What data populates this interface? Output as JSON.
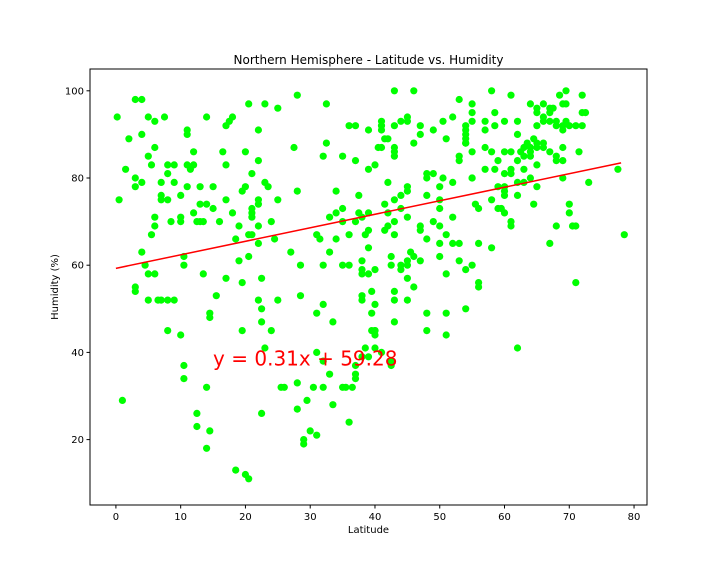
{
  "chart_data": {
    "type": "scatter",
    "title": "Northern Hemisphere - Latitude vs. Humidity",
    "xlabel": "Latitude",
    "ylabel": "Humidity (%)",
    "xlim": [
      -4,
      82
    ],
    "ylim": [
      5,
      105
    ],
    "xticks": [
      0,
      10,
      20,
      30,
      40,
      50,
      60,
      70,
      80
    ],
    "yticks": [
      20,
      40,
      60,
      80,
      100
    ],
    "grid": false,
    "point_color": "#00ff00",
    "regression": {
      "slope": 0.31,
      "intercept": 59.28,
      "x_range": [
        0,
        78
      ],
      "color": "#ff0000",
      "equation": "y = 0.31x + 59.28",
      "equation_anchor": [
        15,
        37
      ]
    },
    "points": [
      [
        0.2,
        94
      ],
      [
        0.5,
        75
      ],
      [
        1,
        29
      ],
      [
        1.5,
        82
      ],
      [
        2,
        89
      ],
      [
        3,
        98
      ],
      [
        3,
        80
      ],
      [
        3,
        55
      ],
      [
        3,
        54
      ],
      [
        3,
        78
      ],
      [
        4,
        90
      ],
      [
        4,
        98
      ],
      [
        4,
        63
      ],
      [
        4,
        79
      ],
      [
        4.5,
        60
      ],
      [
        5,
        94
      ],
      [
        5,
        52
      ],
      [
        5,
        85
      ],
      [
        5,
        58
      ],
      [
        5.5,
        67
      ],
      [
        5.5,
        83
      ],
      [
        6,
        93
      ],
      [
        6,
        69
      ],
      [
        6,
        71
      ],
      [
        6,
        58
      ],
      [
        6,
        87
      ],
      [
        6.5,
        52
      ],
      [
        7,
        76
      ],
      [
        7,
        75
      ],
      [
        7,
        52
      ],
      [
        7,
        79
      ],
      [
        7.5,
        94
      ],
      [
        8,
        81
      ],
      [
        8,
        83
      ],
      [
        8,
        52
      ],
      [
        8,
        45
      ],
      [
        8,
        75
      ],
      [
        8.5,
        70
      ],
      [
        9,
        83
      ],
      [
        9,
        79
      ],
      [
        9,
        52
      ],
      [
        10,
        76
      ],
      [
        10,
        71
      ],
      [
        10,
        44
      ],
      [
        10,
        70
      ],
      [
        10.5,
        62
      ],
      [
        10.5,
        60
      ],
      [
        10.5,
        37
      ],
      [
        10.5,
        34
      ],
      [
        11,
        90
      ],
      [
        11,
        91
      ],
      [
        11,
        83
      ],
      [
        11,
        78
      ],
      [
        11.5,
        82
      ],
      [
        12,
        86
      ],
      [
        12,
        83
      ],
      [
        12,
        72
      ],
      [
        12.5,
        70
      ],
      [
        12.5,
        26
      ],
      [
        12.5,
        23
      ],
      [
        13,
        78
      ],
      [
        13,
        70
      ],
      [
        13,
        74
      ],
      [
        13.5,
        58
      ],
      [
        13.5,
        70
      ],
      [
        14,
        94
      ],
      [
        14,
        32
      ],
      [
        14,
        18
      ],
      [
        14,
        74
      ],
      [
        14.5,
        48
      ],
      [
        14.5,
        49
      ],
      [
        14.5,
        22
      ],
      [
        15,
        73
      ],
      [
        15,
        78
      ],
      [
        15.5,
        53
      ],
      [
        16,
        70
      ],
      [
        16.5,
        86
      ],
      [
        17,
        75
      ],
      [
        17,
        92
      ],
      [
        17,
        83
      ],
      [
        17,
        57
      ],
      [
        17.5,
        93
      ],
      [
        18,
        72
      ],
      [
        18,
        94
      ],
      [
        18.5,
        66
      ],
      [
        18.5,
        13
      ],
      [
        19,
        69
      ],
      [
        19,
        61
      ],
      [
        19.5,
        77
      ],
      [
        19.5,
        45
      ],
      [
        19.5,
        56
      ],
      [
        20,
        12
      ],
      [
        20.5,
        11
      ],
      [
        20,
        78
      ],
      [
        20,
        86
      ],
      [
        20.5,
        97
      ],
      [
        20.5,
        62
      ],
      [
        20.5,
        67
      ],
      [
        21,
        72
      ],
      [
        21,
        73
      ],
      [
        21,
        71
      ],
      [
        21,
        81
      ],
      [
        21,
        67
      ],
      [
        22,
        91
      ],
      [
        22,
        84
      ],
      [
        22,
        75
      ],
      [
        22,
        74
      ],
      [
        22,
        69
      ],
      [
        22,
        65
      ],
      [
        22,
        52
      ],
      [
        22.5,
        57
      ],
      [
        22.5,
        50
      ],
      [
        22.5,
        47
      ],
      [
        22.5,
        26
      ],
      [
        23,
        41
      ],
      [
        23,
        97
      ],
      [
        23,
        79
      ],
      [
        23.5,
        78
      ],
      [
        24,
        70
      ],
      [
        24,
        45
      ],
      [
        24.5,
        66
      ],
      [
        25,
        96
      ],
      [
        25,
        52
      ],
      [
        25,
        75
      ],
      [
        25.5,
        32
      ],
      [
        26,
        32
      ],
      [
        27,
        63
      ],
      [
        27.5,
        87
      ],
      [
        28,
        99
      ],
      [
        28,
        77
      ],
      [
        28,
        33
      ],
      [
        28,
        27
      ],
      [
        28.5,
        60
      ],
      [
        28.5,
        53
      ],
      [
        29,
        20
      ],
      [
        29,
        19
      ],
      [
        29.5,
        29
      ],
      [
        30,
        22
      ],
      [
        30.5,
        32
      ],
      [
        31,
        40
      ],
      [
        31,
        49
      ],
      [
        31,
        67
      ],
      [
        31,
        21
      ],
      [
        31.5,
        66
      ],
      [
        32,
        85
      ],
      [
        32,
        38
      ],
      [
        32,
        32
      ],
      [
        32,
        51
      ],
      [
        32,
        60
      ],
      [
        32.5,
        97
      ],
      [
        32.5,
        88
      ],
      [
        33,
        35
      ],
      [
        33,
        71
      ],
      [
        33,
        63
      ],
      [
        33.5,
        47
      ],
      [
        33.5,
        28
      ],
      [
        34,
        77
      ],
      [
        34,
        72
      ],
      [
        34,
        66
      ],
      [
        35,
        60
      ],
      [
        35,
        73
      ],
      [
        35,
        70
      ],
      [
        35,
        32
      ],
      [
        35,
        85
      ],
      [
        35.5,
        32
      ],
      [
        36,
        24
      ],
      [
        36,
        67
      ],
      [
        36,
        60
      ],
      [
        36,
        92
      ],
      [
        36.5,
        32
      ],
      [
        37,
        84
      ],
      [
        37,
        92
      ],
      [
        37,
        70
      ],
      [
        37,
        35
      ],
      [
        37,
        37
      ],
      [
        37,
        34
      ],
      [
        37.5,
        76
      ],
      [
        37.5,
        72
      ],
      [
        38,
        71
      ],
      [
        38,
        39
      ],
      [
        38,
        61
      ],
      [
        38,
        59
      ],
      [
        38,
        53
      ],
      [
        38,
        52
      ],
      [
        38,
        58
      ],
      [
        38.5,
        41
      ],
      [
        38.5,
        67
      ],
      [
        39,
        64
      ],
      [
        39,
        39
      ],
      [
        39,
        72
      ],
      [
        39,
        91
      ],
      [
        39,
        82
      ],
      [
        39,
        68
      ],
      [
        39,
        58
      ],
      [
        39.5,
        54
      ],
      [
        39.5,
        45
      ],
      [
        39.5,
        49
      ],
      [
        40,
        45
      ],
      [
        40,
        44
      ],
      [
        40,
        59
      ],
      [
        40,
        51
      ],
      [
        40,
        41
      ],
      [
        40,
        45
      ],
      [
        40,
        83
      ],
      [
        40.5,
        87
      ],
      [
        41,
        87
      ],
      [
        41,
        93
      ],
      [
        41,
        91
      ],
      [
        41,
        92
      ],
      [
        41,
        40
      ],
      [
        41.5,
        74
      ],
      [
        41.5,
        89
      ],
      [
        41.5,
        68
      ],
      [
        42,
        72
      ],
      [
        42,
        89
      ],
      [
        42,
        79
      ],
      [
        42,
        69
      ],
      [
        42.5,
        62
      ],
      [
        42.5,
        60
      ],
      [
        42.5,
        38
      ],
      [
        42.5,
        37
      ],
      [
        43,
        100
      ],
      [
        43,
        92
      ],
      [
        43,
        87
      ],
      [
        43,
        86
      ],
      [
        43,
        85
      ],
      [
        43,
        75
      ],
      [
        43,
        70
      ],
      [
        43,
        67
      ],
      [
        43,
        54
      ],
      [
        43,
        52
      ],
      [
        43,
        47
      ],
      [
        44,
        93
      ],
      [
        44,
        76
      ],
      [
        44,
        60
      ],
      [
        44,
        59
      ],
      [
        44,
        73
      ],
      [
        45,
        93
      ],
      [
        45,
        94
      ],
      [
        45,
        78
      ],
      [
        45,
        77
      ],
      [
        45,
        71
      ],
      [
        45,
        60
      ],
      [
        45,
        52
      ],
      [
        45,
        57
      ],
      [
        45,
        61
      ],
      [
        45.5,
        63
      ],
      [
        46,
        100
      ],
      [
        46,
        62
      ],
      [
        46,
        55
      ],
      [
        46,
        88
      ],
      [
        47,
        92
      ],
      [
        47,
        90
      ],
      [
        47,
        69
      ],
      [
        47,
        68
      ],
      [
        47,
        61
      ],
      [
        48,
        80
      ],
      [
        48,
        81
      ],
      [
        48,
        45
      ],
      [
        48,
        49
      ],
      [
        48,
        66
      ],
      [
        48,
        76
      ],
      [
        49,
        70
      ],
      [
        49,
        91
      ],
      [
        49,
        81
      ],
      [
        50,
        78
      ],
      [
        50,
        62
      ],
      [
        50,
        65
      ],
      [
        50,
        69
      ],
      [
        50,
        73
      ],
      [
        50,
        75
      ],
      [
        50.5,
        93
      ],
      [
        50.5,
        80
      ],
      [
        51,
        89
      ],
      [
        51,
        58
      ],
      [
        51,
        44
      ],
      [
        51,
        67
      ],
      [
        51,
        49
      ],
      [
        52,
        71
      ],
      [
        52,
        94
      ],
      [
        52,
        79
      ],
      [
        52,
        65
      ],
      [
        53,
        98
      ],
      [
        53,
        84
      ],
      [
        53,
        85
      ],
      [
        53,
        61
      ],
      [
        53,
        65
      ],
      [
        54,
        88
      ],
      [
        54,
        92
      ],
      [
        54,
        90
      ],
      [
        54,
        91
      ],
      [
        54,
        89
      ],
      [
        54,
        88
      ],
      [
        54,
        59
      ],
      [
        54,
        50
      ],
      [
        55,
        80
      ],
      [
        55,
        97
      ],
      [
        55,
        95
      ],
      [
        55,
        93
      ],
      [
        55,
        80
      ],
      [
        55,
        60
      ],
      [
        55,
        86
      ],
      [
        55.5,
        74
      ],
      [
        56,
        56
      ],
      [
        56,
        55
      ],
      [
        56,
        73
      ],
      [
        56,
        65
      ],
      [
        57,
        93
      ],
      [
        57,
        87
      ],
      [
        57,
        82
      ],
      [
        57,
        91
      ],
      [
        58,
        64
      ],
      [
        58,
        75
      ],
      [
        58,
        86
      ],
      [
        58,
        100
      ],
      [
        58.5,
        92
      ],
      [
        58.5,
        82
      ],
      [
        58.5,
        95
      ],
      [
        59,
        78
      ],
      [
        59,
        84
      ],
      [
        59,
        73
      ],
      [
        59.5,
        73
      ],
      [
        60,
        72
      ],
      [
        60,
        77
      ],
      [
        60,
        76
      ],
      [
        60,
        78
      ],
      [
        60,
        86
      ],
      [
        60,
        93
      ],
      [
        60,
        81
      ],
      [
        61,
        99
      ],
      [
        61,
        86
      ],
      [
        61,
        82
      ],
      [
        61,
        70
      ],
      [
        61,
        69
      ],
      [
        61,
        81
      ],
      [
        62,
        84
      ],
      [
        62,
        79
      ],
      [
        62,
        93
      ],
      [
        62,
        90
      ],
      [
        62,
        41
      ],
      [
        62,
        76
      ],
      [
        62.5,
        86
      ],
      [
        63,
        85
      ],
      [
        63,
        87
      ],
      [
        63,
        79
      ],
      [
        63,
        82
      ],
      [
        63.5,
        88
      ],
      [
        64,
        97
      ],
      [
        64,
        85
      ],
      [
        64,
        87
      ],
      [
        64,
        80
      ],
      [
        64,
        86
      ],
      [
        64.5,
        74
      ],
      [
        64.5,
        89
      ],
      [
        65,
        95
      ],
      [
        65,
        92
      ],
      [
        65,
        96
      ],
      [
        65,
        88
      ],
      [
        65,
        87
      ],
      [
        65,
        83
      ],
      [
        65,
        78
      ],
      [
        66,
        94
      ],
      [
        66,
        93
      ],
      [
        66,
        97
      ],
      [
        66,
        87
      ],
      [
        66,
        88
      ],
      [
        67,
        96
      ],
      [
        67,
        95
      ],
      [
        67,
        93
      ],
      [
        67,
        86
      ],
      [
        67,
        65
      ],
      [
        67.5,
        96
      ],
      [
        68,
        93
      ],
      [
        68,
        92
      ],
      [
        68,
        85
      ],
      [
        68,
        84
      ],
      [
        68,
        69
      ],
      [
        68.5,
        99
      ],
      [
        69,
        97
      ],
      [
        69,
        92
      ],
      [
        69,
        91
      ],
      [
        69,
        84
      ],
      [
        69,
        80
      ],
      [
        69,
        87
      ],
      [
        69.5,
        100
      ],
      [
        69.5,
        97
      ],
      [
        69.5,
        93
      ],
      [
        70,
        92
      ],
      [
        70,
        72
      ],
      [
        70,
        74
      ],
      [
        70.5,
        69
      ],
      [
        71,
        69
      ],
      [
        71,
        56
      ],
      [
        71,
        92
      ],
      [
        71.5,
        86
      ],
      [
        72,
        99
      ],
      [
        72,
        95
      ],
      [
        72,
        92
      ],
      [
        72.5,
        95
      ],
      [
        73,
        79
      ],
      [
        77.5,
        82
      ],
      [
        78.5,
        67
      ]
    ]
  }
}
